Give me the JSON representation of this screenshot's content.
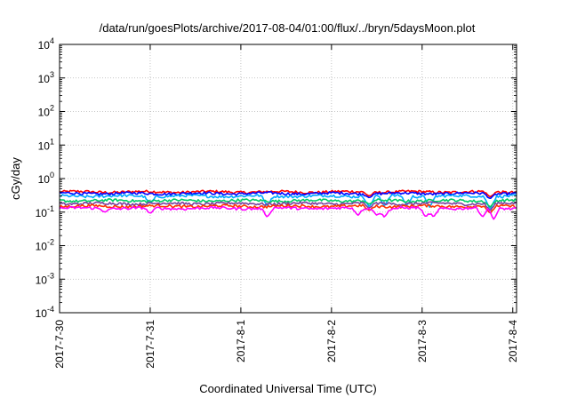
{
  "chart_data": {
    "type": "line",
    "title": "/data/run/goesPlots/archive/2017-08-04/01:00/flux/../bryn/5daysMoon.plot",
    "xlabel": "Coordinated Universal Time (UTC)",
    "ylabel": "cGy/day",
    "yscale": "log",
    "ylim": [
      0.0001,
      10000
    ],
    "y_ticks": [
      {
        "base": "10",
        "exp": "-4",
        "value": 0.0001
      },
      {
        "base": "10",
        "exp": "-3",
        "value": 0.001
      },
      {
        "base": "10",
        "exp": "-2",
        "value": 0.01
      },
      {
        "base": "10",
        "exp": "-1",
        "value": 0.1
      },
      {
        "base": "10",
        "exp": "0",
        "value": 1
      },
      {
        "base": "10",
        "exp": "1",
        "value": 10
      },
      {
        "base": "10",
        "exp": "2",
        "value": 100
      },
      {
        "base": "10",
        "exp": "3",
        "value": 1000
      },
      {
        "base": "10",
        "exp": "4",
        "value": 10000
      }
    ],
    "x_ticks": [
      "2017-7-30",
      "2017-7-31",
      "2017-8-1",
      "2017-8-2",
      "2017-8-3",
      "2017-8-4"
    ],
    "xlim": [
      "2017-07-30 00:00",
      "2017-08-04 01:00"
    ],
    "grid": true,
    "legend": "none",
    "series": [
      {
        "color": "#ff0000",
        "level": 0.4,
        "dips": [
          {
            "t": "2017-08-02 10:00",
            "v": 0.3
          },
          {
            "t": "2017-08-03 18:00",
            "v": 0.28
          }
        ]
      },
      {
        "color": "#0000ff",
        "level": 0.36,
        "dips": [
          {
            "t": "2017-08-02 10:00",
            "v": 0.27
          },
          {
            "t": "2017-08-03 18:00",
            "v": 0.25
          }
        ]
      },
      {
        "color": "#00aaff",
        "level": 0.3,
        "dips": [
          {
            "t": "2017-07-31 00:00",
            "v": 0.18
          },
          {
            "t": "2017-08-01 07:00",
            "v": 0.15
          },
          {
            "t": "2017-08-02 10:00",
            "v": 0.14
          },
          {
            "t": "2017-08-02 14:00",
            "v": 0.15
          },
          {
            "t": "2017-08-02 20:00",
            "v": 0.16
          },
          {
            "t": "2017-08-03 02:00",
            "v": 0.14
          },
          {
            "t": "2017-08-03 18:00",
            "v": 0.12
          }
        ]
      },
      {
        "color": "#00cc66",
        "level": 0.22,
        "dips": [
          {
            "t": "2017-08-02 10:00",
            "v": 0.17
          },
          {
            "t": "2017-08-03 18:00",
            "v": 0.14
          }
        ]
      },
      {
        "color": "#7b3fa0",
        "level": 0.18,
        "dips": [
          {
            "t": "2017-08-02 10:00",
            "v": 0.13
          },
          {
            "t": "2017-08-03 18:00",
            "v": 0.11
          }
        ]
      },
      {
        "color": "#ff3300",
        "level": 0.15,
        "dips": [
          {
            "t": "2017-08-02 10:00",
            "v": 0.11
          },
          {
            "t": "2017-08-03 18:00",
            "v": 0.09
          }
        ]
      },
      {
        "color": "#ff00ff",
        "level": 0.13,
        "dips": [
          {
            "t": "2017-07-30 12:00",
            "v": 0.1
          },
          {
            "t": "2017-07-31 00:00",
            "v": 0.09
          },
          {
            "t": "2017-08-01 07:00",
            "v": 0.07
          },
          {
            "t": "2017-08-02 07:00",
            "v": 0.08
          },
          {
            "t": "2017-08-02 12:00",
            "v": 0.08
          },
          {
            "t": "2017-08-02 14:00",
            "v": 0.07
          },
          {
            "t": "2017-08-03 01:00",
            "v": 0.07
          },
          {
            "t": "2017-08-03 03:00",
            "v": 0.07
          },
          {
            "t": "2017-08-03 16:00",
            "v": 0.07
          },
          {
            "t": "2017-08-03 19:00",
            "v": 0.06
          }
        ]
      }
    ]
  }
}
